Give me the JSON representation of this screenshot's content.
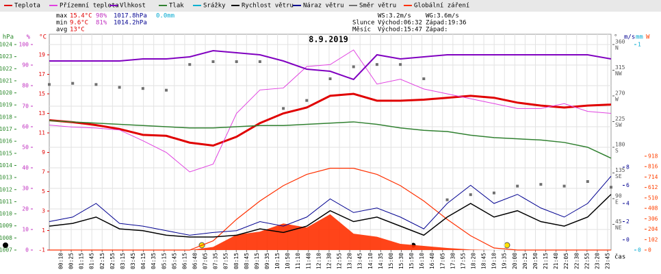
{
  "legend_bar": true,
  "stats": [
    [
      "max",
      "15.4°C",
      "98%",
      "1017.8hPa",
      "0.0mm"
    ],
    [
      "min",
      "9.6°C",
      "81%",
      "1014.2hPa"
    ],
    [
      "avg",
      "13°C"
    ]
  ],
  "info": [
    [
      "",
      "WS:3.2m/s",
      "WG:3.6m/s"
    ],
    [
      "Slunce",
      "Východ:06:32",
      "Západ:19:36"
    ],
    [
      "Měsíc",
      "Východ:15:47",
      "Západ:"
    ]
  ],
  "chart_data": {
    "type": "line",
    "title": "8.9.2019",
    "x_label": "čas",
    "categories": [
      "00:10",
      "00:25",
      "01:15",
      "01:45",
      "02:15",
      "02:55",
      "03:15",
      "03:45",
      "04:15",
      "04:35",
      "05:15",
      "05:45",
      "06:15",
      "06:40",
      "07:05",
      "07:35",
      "07:55",
      "08:15",
      "08:45",
      "09:15",
      "09:35",
      "10:15",
      "10:50",
      "11:10",
      "11:40",
      "12:10",
      "12:30",
      "12:55",
      "13:20",
      "13:45",
      "14:10",
      "14:35",
      "15:00",
      "15:30",
      "15:50",
      "16:10",
      "16:40",
      "17:05",
      "17:30",
      "17:55",
      "18:20",
      "18:45",
      "19:10",
      "19:35",
      "20:00",
      "20:25",
      "20:50",
      "21:15",
      "21:40",
      "22:05",
      "22:30",
      "22:55",
      "23:20",
      "23:45"
    ],
    "xlim": [
      0,
      24
    ],
    "x": [
      0,
      1,
      2,
      3,
      4,
      5,
      6,
      7,
      8,
      9,
      10,
      11,
      12,
      13,
      14,
      15,
      16,
      17,
      18,
      19,
      20,
      21,
      22,
      23,
      24
    ],
    "grid": true,
    "axes": {
      "hPa": {
        "unit": "hPa",
        "color": "#2e8b2e",
        "lim": [
          1007,
          1024
        ],
        "ticks": [
          1007,
          1008,
          1009,
          1010,
          1011,
          1012,
          1013,
          1014,
          1015,
          1016,
          1017,
          1018,
          1019,
          1020,
          1021,
          1022,
          1023,
          1024
        ]
      },
      "pct": {
        "unit": "%",
        "color": "#c030c0",
        "lim": [
          0,
          100
        ],
        "ticks": [
          0,
          10,
          20,
          30,
          40,
          50,
          60,
          70,
          80,
          90,
          100
        ]
      },
      "temp": {
        "unit": "°C",
        "color": "#e00000",
        "lim": [
          -1,
          19
        ],
        "ticks": [
          -1,
          1,
          3,
          5,
          7,
          9,
          11,
          13,
          15,
          17,
          19
        ]
      },
      "dir": {
        "unit": "°",
        "color": "#555555",
        "lim": [
          0,
          360
        ],
        "ticks": [
          {
            "value": 360,
            "label": "360",
            "sub": "N"
          },
          {
            "value": 315,
            "label": "315",
            "sub": "NW"
          },
          {
            "value": 270,
            "label": "270",
            "sub": "W"
          },
          {
            "value": 225,
            "label": "225",
            "sub": "SW"
          },
          {
            "value": 180,
            "label": "180",
            "sub": "S"
          },
          {
            "value": 135,
            "label": "135",
            "sub": "SE"
          },
          {
            "value": 90,
            "label": "90",
            "sub": "E"
          },
          {
            "value": 45,
            "label": "45",
            "sub": "NE"
          }
        ]
      },
      "ms": {
        "unit": "m/s",
        "color": "#000090",
        "lim": [
          0,
          8
        ],
        "ticks": [
          0,
          2,
          4,
          6,
          8
        ]
      },
      "mm": {
        "unit": "mm",
        "color": "#00a8d0",
        "lim": [
          0,
          1
        ],
        "ticks": [
          0,
          1
        ]
      },
      "W": {
        "unit": "W",
        "color": "#ff4000",
        "lim": [
          0,
          918
        ],
        "ticks": [
          0,
          102,
          204,
          306,
          408,
          510,
          612,
          714,
          816,
          918
        ]
      }
    },
    "series": [
      {
        "name": "Teplota",
        "color": "#e00000",
        "axis": "temp",
        "style": "line",
        "width": 3,
        "values": [
          12.3,
          12.1,
          11.8,
          11.4,
          10.8,
          10.7,
          10.0,
          9.7,
          10.6,
          12.0,
          13.0,
          13.6,
          14.8,
          15.0,
          14.3,
          14.3,
          14.4,
          14.6,
          14.8,
          14.6,
          14.1,
          13.8,
          13.6,
          13.8,
          13.9
        ]
      },
      {
        "name": "Přízemní teplota",
        "color": "#e040e0",
        "axis": "temp",
        "style": "line",
        "width": 1,
        "values": [
          11.8,
          11.6,
          11.5,
          11.3,
          10.2,
          9.0,
          7.0,
          7.8,
          13.0,
          15.4,
          15.6,
          17.8,
          18.0,
          19.5,
          16.0,
          16.5,
          15.5,
          15.0,
          14.5,
          14.0,
          13.5,
          13.5,
          14.0,
          13.2,
          13.0
        ]
      },
      {
        "name": "Vlhkost",
        "color": "#8000c0",
        "axis": "pct",
        "style": "line",
        "width": 2,
        "values": [
          92,
          92,
          92,
          92,
          93,
          93,
          94,
          97,
          96,
          95,
          92,
          88,
          87,
          83,
          95,
          93,
          94,
          95,
          95,
          95,
          95,
          95,
          95,
          95,
          93
        ]
      },
      {
        "name": "Tlak",
        "color": "#308030",
        "axis": "hPa",
        "style": "line",
        "width": 1.5,
        "values": [
          1017.7,
          1017.6,
          1017.5,
          1017.4,
          1017.3,
          1017.2,
          1017.1,
          1017.1,
          1017.2,
          1017.3,
          1017.3,
          1017.4,
          1017.5,
          1017.6,
          1017.4,
          1017.1,
          1016.9,
          1016.8,
          1016.5,
          1016.3,
          1016.2,
          1016.1,
          1015.9,
          1015.5,
          1014.6
        ]
      },
      {
        "name": "Srážky",
        "color": "#00b0d0",
        "axis": "mm",
        "style": "bar",
        "width": 1,
        "values": [
          0,
          0,
          0,
          0,
          0,
          0,
          0,
          0,
          0,
          0,
          0,
          0,
          0,
          0,
          0,
          0,
          0,
          0,
          0,
          0,
          0,
          0,
          0,
          0,
          0
        ]
      },
      {
        "name": "Rychlost větru",
        "color": "#000000",
        "axis": "ms",
        "style": "line",
        "width": 1.5,
        "values": [
          1.5,
          1.8,
          2.5,
          1.2,
          1.0,
          0.5,
          0.3,
          0.3,
          0.5,
          1.2,
          0.8,
          1.5,
          3.2,
          2.0,
          2.5,
          1.5,
          0.5,
          2.5,
          4.0,
          2.5,
          3.2,
          2.0,
          1.5,
          2.5,
          5.0
        ]
      },
      {
        "name": "Náraz větru",
        "color": "#000090",
        "axis": "ms",
        "style": "line",
        "width": 1,
        "values": [
          2.0,
          2.5,
          4.0,
          1.8,
          1.5,
          1.0,
          0.5,
          0.8,
          1.0,
          2.0,
          1.5,
          2.5,
          4.5,
          3.0,
          3.5,
          2.5,
          1.2,
          4.0,
          6.0,
          4.0,
          5.0,
          3.5,
          2.5,
          4.0,
          7.0
        ]
      },
      {
        "name": "Směr větru",
        "color": "#707070",
        "axis": "dir",
        "style": "points",
        "width": 1,
        "values": [
          290,
          292,
          290,
          285,
          283,
          280,
          325,
          330,
          330,
          330,
          248,
          262,
          300,
          321,
          325,
          325,
          300,
          88,
          97,
          100,
          112,
          115,
          112,
          120,
          110
        ]
      },
      {
        "name": "Globální záření",
        "color": "#ff3000",
        "axis": "W",
        "style": "area",
        "width": 1,
        "values": [
          0,
          0,
          0,
          0,
          0,
          0,
          0,
          30,
          150,
          180,
          260,
          220,
          350,
          160,
          130,
          60,
          40,
          20,
          5,
          0,
          0,
          0,
          0,
          0,
          0
        ],
        "clear_sky": [
          0,
          0,
          0,
          0,
          0,
          0,
          0,
          90,
          300,
          480,
          630,
          740,
          800,
          800,
          740,
          630,
          480,
          300,
          140,
          20,
          0,
          0,
          0,
          0,
          0
        ]
      }
    ]
  }
}
